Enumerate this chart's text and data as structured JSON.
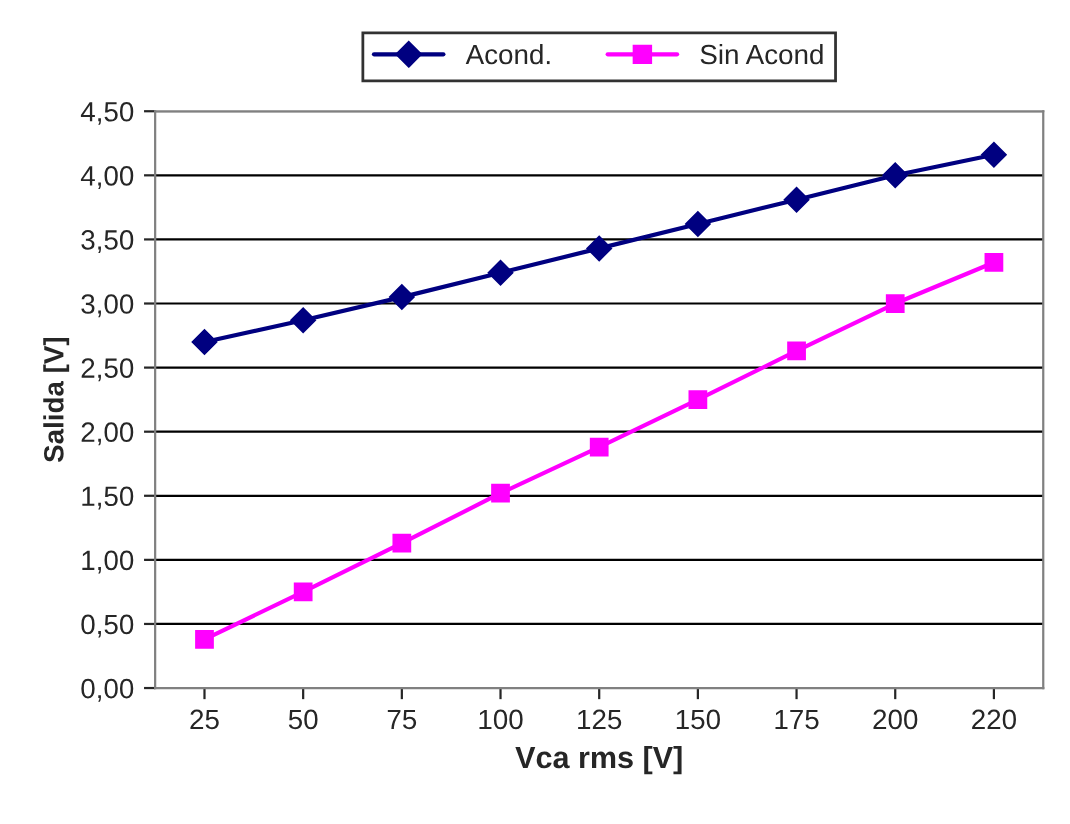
{
  "chart_data": {
    "type": "line",
    "xlabel": "Vca rms [V]",
    "ylabel": "Salida [V]",
    "categories": [
      "25",
      "50",
      "75",
      "100",
      "125",
      "150",
      "175",
      "200",
      "220"
    ],
    "series": [
      {
        "name": "Acond.",
        "color": "#000080",
        "marker": "diamond",
        "values": [
          2.7,
          2.87,
          3.05,
          3.24,
          3.43,
          3.62,
          3.81,
          4.0,
          4.16
        ]
      },
      {
        "name": "Sin Acond",
        "color": "#ff00ff",
        "marker": "square",
        "values": [
          0.38,
          0.75,
          1.13,
          1.52,
          1.88,
          2.25,
          2.63,
          3.0,
          3.32
        ]
      }
    ],
    "ylim": [
      0,
      4.5
    ],
    "yticks": [
      {
        "value": 0,
        "label": "0,00"
      },
      {
        "value": 0.5,
        "label": "0,50"
      },
      {
        "value": 1,
        "label": "1,00"
      },
      {
        "value": 1.5,
        "label": "1,50"
      },
      {
        "value": 2,
        "label": "2,00"
      },
      {
        "value": 2.5,
        "label": "2,50"
      },
      {
        "value": 3,
        "label": "3,00"
      },
      {
        "value": 3.5,
        "label": "3,50"
      },
      {
        "value": 4,
        "label": "4,00"
      },
      {
        "value": 4.5,
        "label": "4,50"
      }
    ],
    "grid": "y",
    "legend": "top",
    "line_style": "solid"
  }
}
